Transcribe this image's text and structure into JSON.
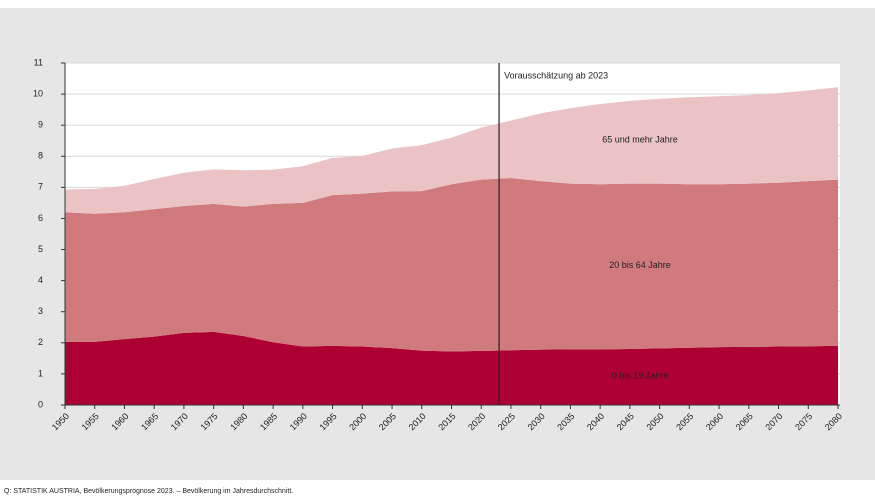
{
  "chart_data": {
    "type": "stacked_area",
    "x": [
      1950,
      1955,
      1960,
      1965,
      1970,
      1975,
      1980,
      1985,
      1990,
      1995,
      2000,
      2005,
      2010,
      2015,
      2020,
      2025,
      2030,
      2035,
      2040,
      2045,
      2050,
      2055,
      2060,
      2065,
      2070,
      2075,
      2080
    ],
    "series": [
      {
        "name": "0 bis 19 Jahre",
        "color": "#ad0033",
        "values": [
          2.03,
          2.03,
          2.12,
          2.2,
          2.32,
          2.35,
          2.22,
          2.02,
          1.88,
          1.9,
          1.88,
          1.83,
          1.75,
          1.72,
          1.74,
          1.76,
          1.78,
          1.79,
          1.79,
          1.8,
          1.82,
          1.84,
          1.86,
          1.87,
          1.88,
          1.89,
          1.9
        ]
      },
      {
        "name": "20 bis 64 Jahre",
        "color": "#d07a7e",
        "values": [
          4.17,
          4.12,
          4.08,
          4.1,
          4.08,
          4.12,
          4.16,
          4.45,
          4.62,
          4.85,
          4.92,
          5.04,
          5.13,
          5.38,
          5.51,
          5.54,
          5.42,
          5.33,
          5.31,
          5.32,
          5.3,
          5.26,
          5.24,
          5.25,
          5.27,
          5.31,
          5.35
        ]
      },
      {
        "name": "65 und mehr Jahre",
        "color": "#ebc3c5",
        "values": [
          0.73,
          0.8,
          0.85,
          0.97,
          1.07,
          1.11,
          1.17,
          1.1,
          1.18,
          1.2,
          1.21,
          1.38,
          1.48,
          1.5,
          1.67,
          1.85,
          2.18,
          2.43,
          2.58,
          2.66,
          2.73,
          2.8,
          2.83,
          2.85,
          2.88,
          2.92,
          2.97
        ]
      }
    ],
    "xlim": [
      1950,
      2080
    ],
    "xticks": [
      1950,
      1955,
      1960,
      1965,
      1970,
      1975,
      1980,
      1985,
      1990,
      1995,
      2000,
      2005,
      2010,
      2015,
      2020,
      2025,
      2030,
      2035,
      2040,
      2045,
      2050,
      2055,
      2060,
      2065,
      2070,
      2075,
      2080
    ],
    "ylim": [
      0,
      11
    ],
    "yticks": [
      0,
      1,
      2,
      3,
      4,
      5,
      6,
      7,
      8,
      9,
      10,
      11
    ],
    "grid": true,
    "forecast_line": {
      "x": 2023,
      "label": "Vorausschätzung ab 2023"
    },
    "source": "Q: STATISTIK AUSTRIA, Bevölkerungsprognose 2023. – Bevölkerung im Jahresdurchschnitt."
  }
}
